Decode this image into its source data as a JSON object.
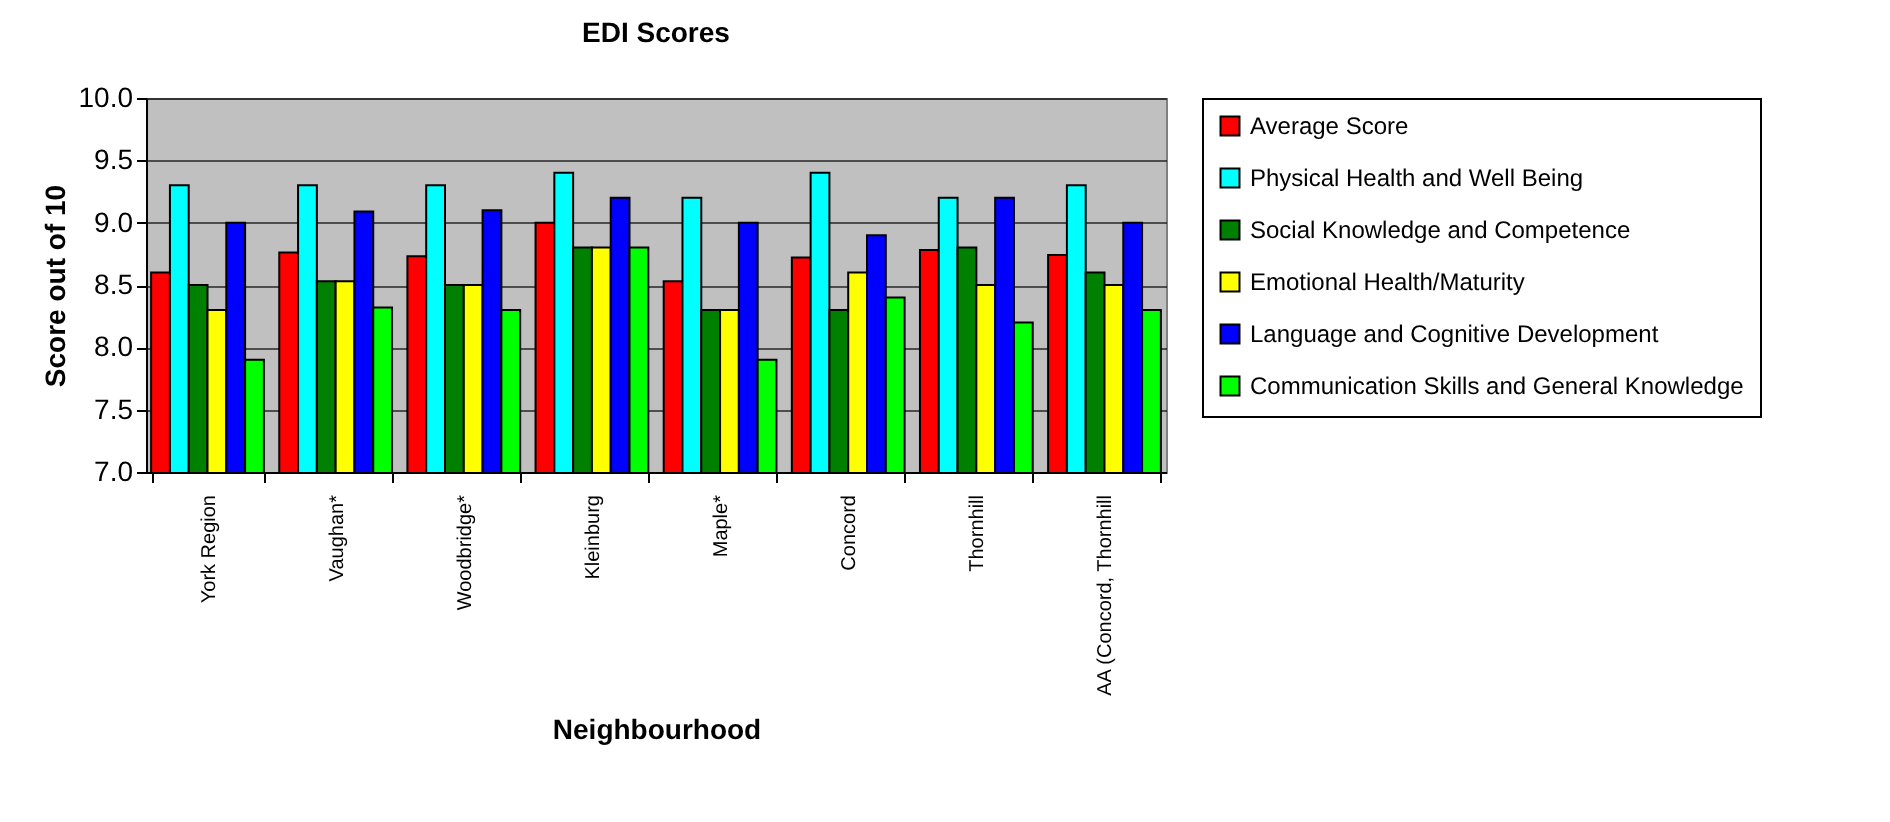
{
  "chart_data": {
    "type": "bar",
    "title": "EDI Scores",
    "xlabel": "Neighbourhood",
    "ylabel": "Score out of 10",
    "categories": [
      "York Region",
      "Vaughan*",
      "Woodbridge*",
      "Kleinburg",
      "Maple*",
      "Concord",
      "Thornhill",
      "AA (Concord, Thornhill"
    ],
    "series": [
      {
        "name": "Average Score",
        "color": "#ff0000",
        "values": [
          8.6,
          8.76,
          8.73,
          9.0,
          8.53,
          8.72,
          8.78,
          8.74
        ]
      },
      {
        "name": "Physical Health and Well Being",
        "color": "#00ffff",
        "values": [
          9.3,
          9.3,
          9.3,
          9.4,
          9.2,
          9.4,
          9.2,
          9.3
        ]
      },
      {
        "name": "Social Knowledge and Competence",
        "color": "#008000",
        "values": [
          8.5,
          8.53,
          8.5,
          8.8,
          8.3,
          8.3,
          8.8,
          8.6
        ]
      },
      {
        "name": "Emotional Health/Maturity",
        "color": "#ffff00",
        "values": [
          8.3,
          8.53,
          8.5,
          8.8,
          8.3,
          8.6,
          8.5,
          8.5
        ]
      },
      {
        "name": "Language and Cognitive Development",
        "color": "#0000ff",
        "values": [
          9.0,
          9.09,
          9.1,
          9.2,
          9.0,
          8.9,
          9.2,
          9.0
        ]
      },
      {
        "name": "Communication Skills and General Knowledge",
        "color": "#00ff00",
        "values": [
          7.9,
          8.32,
          8.3,
          8.8,
          7.9,
          8.4,
          8.2,
          8.3
        ]
      }
    ],
    "ylim": [
      7.0,
      10.0
    ],
    "yticks": [
      {
        "value": 7,
        "label": "7.0"
      },
      7.5,
      {
        "value": 8,
        "label": "8.0"
      },
      8.5,
      {
        "value": 9,
        "label": "9.0"
      },
      9.5,
      {
        "value": 10,
        "label": "10.0"
      }
    ],
    "grid": "y",
    "legend": "right"
  }
}
